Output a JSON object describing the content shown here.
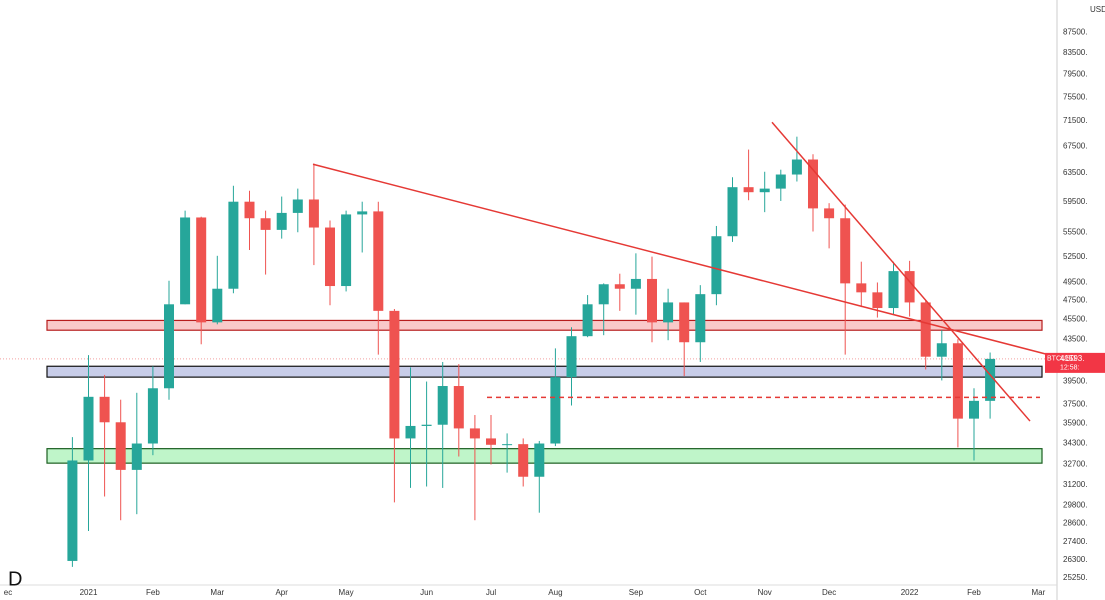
{
  "chart_data": {
    "type": "candlestick",
    "symbol": "BTCUSD",
    "currency": "USD",
    "corner_letter": "D",
    "countdown": "12:58:",
    "last_price": {
      "value": 41593,
      "label": "41593."
    },
    "log_scale": true,
    "up_color": "#26a69a",
    "down_color": "#ef5350",
    "ylim": [
      24850,
      94200
    ],
    "yticks": [
      {
        "value": 25250,
        "label": "25250."
      },
      {
        "value": 26300,
        "label": "26300."
      },
      {
        "value": 27400,
        "label": "27400."
      },
      {
        "value": 28600,
        "label": "28600."
      },
      {
        "value": 29800,
        "label": "29800."
      },
      {
        "value": 31200,
        "label": "31200."
      },
      {
        "value": 32700,
        "label": "32700."
      },
      {
        "value": 34300,
        "label": "34300."
      },
      {
        "value": 35900,
        "label": "35900."
      },
      {
        "value": 37500,
        "label": "37500."
      },
      {
        "value": 39500,
        "label": "39500."
      },
      {
        "value": 43500,
        "label": "43500."
      },
      {
        "value": 45500,
        "label": "45500."
      },
      {
        "value": 47500,
        "label": "47500."
      },
      {
        "value": 49500,
        "label": "49500."
      },
      {
        "value": 52500,
        "label": "52500."
      },
      {
        "value": 55500,
        "label": "55500."
      },
      {
        "value": 59500,
        "label": "59500."
      },
      {
        "value": 63500,
        "label": "63500."
      },
      {
        "value": 67500,
        "label": "67500."
      },
      {
        "value": 71500,
        "label": "71500."
      },
      {
        "value": 75500,
        "label": "75500."
      },
      {
        "value": 79500,
        "label": "79500."
      },
      {
        "value": 83500,
        "label": "83500."
      },
      {
        "value": 87500,
        "label": "87500."
      }
    ],
    "categories": [
      "ec",
      null,
      null,
      null,
      null,
      "2021",
      null,
      null,
      null,
      "Feb",
      null,
      null,
      null,
      "Mar",
      null,
      null,
      null,
      "Apr",
      null,
      null,
      null,
      "May",
      null,
      null,
      null,
      null,
      "Jun",
      null,
      null,
      null,
      "Jul",
      null,
      null,
      null,
      "Aug",
      null,
      null,
      null,
      null,
      "Sep",
      null,
      null,
      null,
      "Oct",
      null,
      null,
      null,
      "Nov",
      null,
      null,
      null,
      "Dec",
      null,
      null,
      null,
      null,
      "2022",
      null,
      null,
      null,
      "Feb",
      null,
      null,
      null,
      "Mar"
    ],
    "open": [
      null,
      null,
      null,
      null,
      26250,
      33000,
      38150,
      36000,
      32300,
      34300,
      38900,
      47100,
      57400,
      45200,
      48800,
      59500,
      57300,
      55800,
      58000,
      59800,
      56100,
      49100,
      57800,
      58200,
      46400,
      34700,
      35700,
      35800,
      39100,
      35500,
      34700,
      34200,
      34250,
      31800,
      34300,
      39900,
      43800,
      47100,
      49300,
      48800,
      49900,
      45200,
      47300,
      43200,
      48200,
      55000,
      61500,
      60800,
      61300,
      63300,
      65500,
      58600,
      57300,
      49400,
      48400,
      46700,
      50800,
      47300,
      41800,
      43100,
      36300,
      37800,
      null,
      null,
      null
    ],
    "high": [
      null,
      null,
      null,
      null,
      34800,
      41950,
      40100,
      37900,
      38500,
      40900,
      49700,
      58300,
      57500,
      52600,
      61700,
      61000,
      58300,
      60200,
      61300,
      64900,
      57000,
      58300,
      59500,
      59500,
      46600,
      40800,
      39500,
      41300,
      41100,
      36600,
      36600,
      35100,
      34700,
      34500,
      42600,
      44700,
      48100,
      49400,
      50500,
      52900,
      52500,
      48800,
      47300,
      49200,
      56300,
      62900,
      67000,
      63700,
      64000,
      69000,
      66300,
      59300,
      59100,
      51900,
      49500,
      51900,
      52000,
      47500,
      44400,
      43500,
      38900,
      42200,
      null,
      null,
      null
    ],
    "low": [
      null,
      null,
      null,
      null,
      25900,
      28100,
      30400,
      28800,
      29200,
      33400,
      37900,
      47100,
      43000,
      45000,
      48300,
      53300,
      50400,
      54700,
      55500,
      51500,
      47000,
      48500,
      53000,
      42000,
      30000,
      31000,
      31100,
      31000,
      33300,
      28800,
      32700,
      32100,
      31100,
      29300,
      34100,
      37400,
      43700,
      43900,
      46400,
      46000,
      43200,
      43400,
      40000,
      41300,
      47000,
      54300,
      59700,
      58100,
      59600,
      62300,
      55600,
      53500,
      42000,
      46800,
      45700,
      46000,
      45800,
      40600,
      39600,
      34000,
      33000,
      36300,
      null,
      null,
      null
    ],
    "close": [
      null,
      null,
      null,
      null,
      33000,
      38150,
      36000,
      32300,
      34300,
      38900,
      47100,
      57400,
      45200,
      48800,
      59500,
      57300,
      55800,
      58000,
      59800,
      56100,
      49100,
      57800,
      58200,
      46400,
      34700,
      35700,
      35800,
      39100,
      35500,
      34700,
      34200,
      34250,
      31800,
      34300,
      39900,
      43800,
      47100,
      49300,
      48800,
      49900,
      45200,
      47300,
      43200,
      48200,
      55000,
      61500,
      60800,
      61300,
      63300,
      65500,
      58600,
      57300,
      49400,
      48400,
      46700,
      50800,
      47300,
      41800,
      43100,
      36300,
      37800,
      41593,
      null,
      null,
      null
    ],
    "zones": [
      {
        "low": 44400,
        "high": 45400,
        "fill": "#f9c9c9",
        "stroke": "#b71c1c"
      },
      {
        "low": 39900,
        "high": 40900,
        "fill": "#c8cde9",
        "stroke": "#111111"
      },
      {
        "low": 32800,
        "high": 33900,
        "fill": "#bff5c9",
        "stroke": "#1b5e20"
      }
    ],
    "trendlines": [
      {
        "from": 64800,
        "to": 41950,
        "color": "#e53935"
      },
      {
        "from": 71300,
        "to": 36100,
        "color": "#e53935"
      }
    ],
    "dashed_level": {
      "value": 38100,
      "color": "#e53935"
    }
  }
}
